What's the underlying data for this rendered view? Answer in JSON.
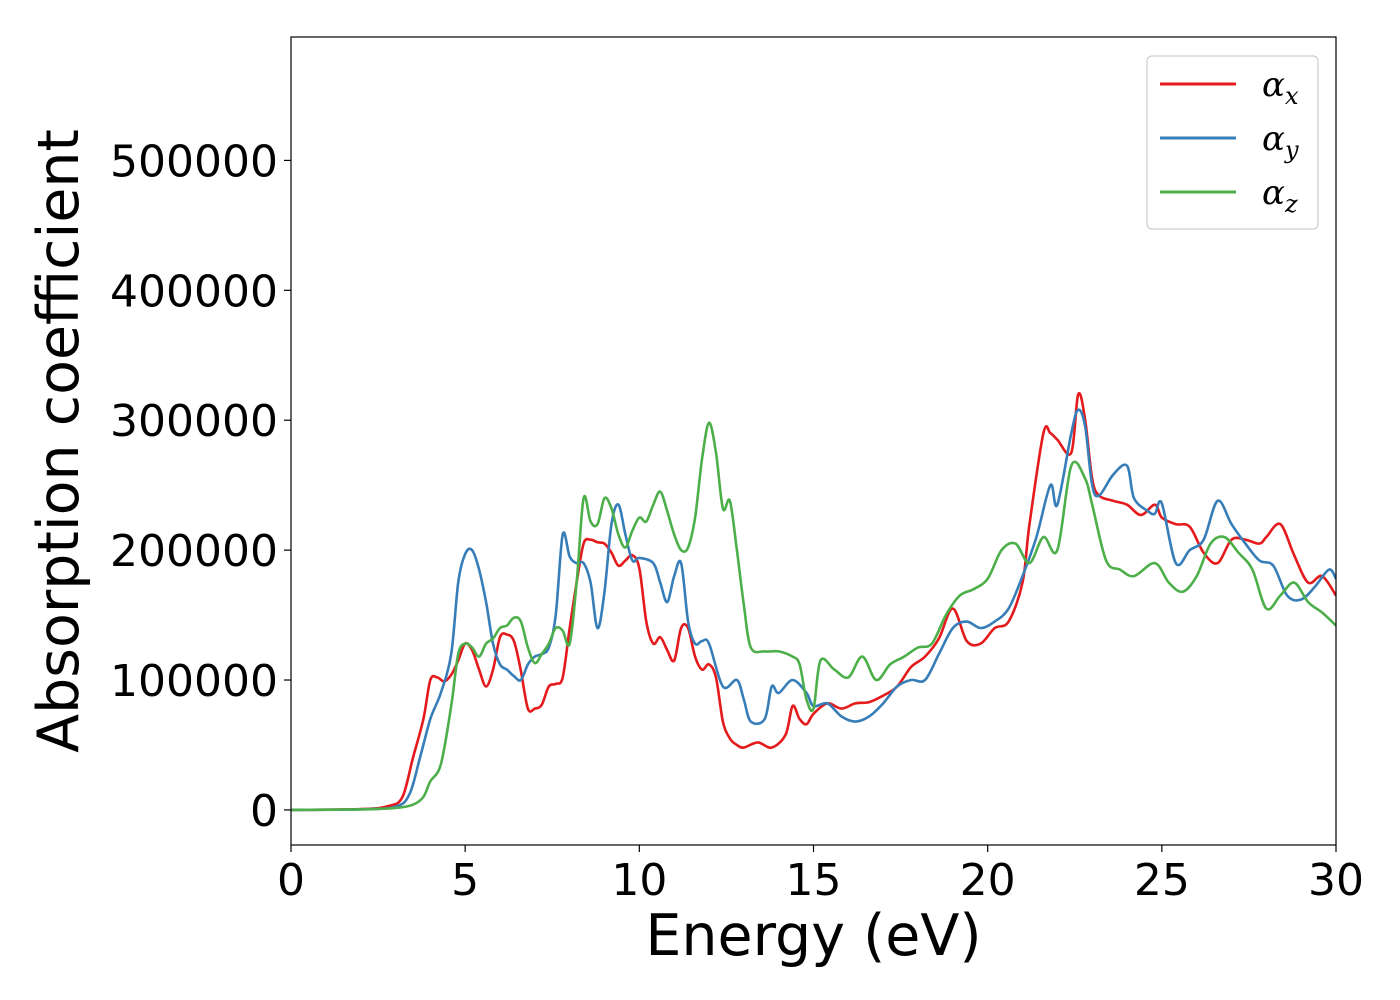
{
  "chart_data": {
    "type": "line",
    "title": "",
    "xlabel": "Energy (eV)",
    "ylabel": "Absorption coefficient",
    "xlim": [
      0,
      30
    ],
    "ylim": [
      -27000,
      595000
    ],
    "xticks": [
      0,
      5,
      10,
      15,
      20,
      25,
      30
    ],
    "yticks": [
      0,
      100000,
      200000,
      300000,
      400000,
      500000
    ],
    "xtick_labels": [
      "0",
      "5",
      "10",
      "15",
      "20",
      "25",
      "30"
    ],
    "ytick_labels": [
      "0",
      "100000",
      "200000",
      "300000",
      "400000",
      "500000"
    ],
    "grid": false,
    "legend_position": "top-right",
    "series": [
      {
        "name": "α_x",
        "color": "#e41a1c",
        "points": [
          [
            0,
            0
          ],
          [
            2,
            600
          ],
          [
            2.8,
            3000
          ],
          [
            3.2,
            10000
          ],
          [
            3.5,
            40000
          ],
          [
            3.8,
            70000
          ],
          [
            4.0,
            100000
          ],
          [
            4.2,
            102000
          ],
          [
            4.4,
            99000
          ],
          [
            4.6,
            104000
          ],
          [
            4.8,
            115000
          ],
          [
            5.0,
            128000
          ],
          [
            5.2,
            123000
          ],
          [
            5.4,
            108000
          ],
          [
            5.6,
            95000
          ],
          [
            5.8,
            108000
          ],
          [
            6.0,
            133000
          ],
          [
            6.2,
            135000
          ],
          [
            6.4,
            130000
          ],
          [
            6.6,
            107000
          ],
          [
            6.8,
            78000
          ],
          [
            7.0,
            78000
          ],
          [
            7.2,
            81000
          ],
          [
            7.4,
            95000
          ],
          [
            7.6,
            97000
          ],
          [
            7.8,
            102000
          ],
          [
            8.0,
            140000
          ],
          [
            8.2,
            175000
          ],
          [
            8.4,
            205000
          ],
          [
            8.6,
            208000
          ],
          [
            8.8,
            206000
          ],
          [
            9.0,
            205000
          ],
          [
            9.2,
            198000
          ],
          [
            9.4,
            188000
          ],
          [
            9.6,
            192000
          ],
          [
            9.8,
            196000
          ],
          [
            10.0,
            186000
          ],
          [
            10.2,
            145000
          ],
          [
            10.4,
            128000
          ],
          [
            10.6,
            133000
          ],
          [
            10.8,
            123000
          ],
          [
            11.0,
            115000
          ],
          [
            11.2,
            140000
          ],
          [
            11.4,
            140000
          ],
          [
            11.6,
            118000
          ],
          [
            11.8,
            108000
          ],
          [
            12.0,
            112000
          ],
          [
            12.2,
            102000
          ],
          [
            12.4,
            68000
          ],
          [
            12.6,
            55000
          ],
          [
            12.8,
            50000
          ],
          [
            13.0,
            48000
          ],
          [
            13.4,
            52000
          ],
          [
            13.8,
            48000
          ],
          [
            14.2,
            58000
          ],
          [
            14.4,
            80000
          ],
          [
            14.6,
            70000
          ],
          [
            14.8,
            66000
          ],
          [
            15.0,
            74000
          ],
          [
            15.4,
            82000
          ],
          [
            15.8,
            78000
          ],
          [
            16.2,
            82000
          ],
          [
            16.6,
            83000
          ],
          [
            17.0,
            88000
          ],
          [
            17.4,
            95000
          ],
          [
            17.8,
            110000
          ],
          [
            18.2,
            118000
          ],
          [
            18.6,
            132000
          ],
          [
            19.0,
            155000
          ],
          [
            19.4,
            130000
          ],
          [
            19.8,
            128000
          ],
          [
            20.2,
            140000
          ],
          [
            20.6,
            145000
          ],
          [
            21.0,
            175000
          ],
          [
            21.2,
            220000
          ],
          [
            21.6,
            290000
          ],
          [
            21.8,
            290000
          ],
          [
            22.0,
            285000
          ],
          [
            22.4,
            275000
          ],
          [
            22.6,
            320000
          ],
          [
            22.8,
            300000
          ],
          [
            23.0,
            255000
          ],
          [
            23.2,
            242000
          ],
          [
            23.6,
            238000
          ],
          [
            24.0,
            235000
          ],
          [
            24.4,
            227000
          ],
          [
            24.8,
            235000
          ],
          [
            25.0,
            225000
          ],
          [
            25.4,
            220000
          ],
          [
            25.8,
            218000
          ],
          [
            26.2,
            198000
          ],
          [
            26.6,
            190000
          ],
          [
            27.0,
            208000
          ],
          [
            27.4,
            208000
          ],
          [
            27.8,
            205000
          ],
          [
            28.0,
            210000
          ],
          [
            28.4,
            220000
          ],
          [
            28.8,
            196000
          ],
          [
            29.2,
            175000
          ],
          [
            29.6,
            180000
          ],
          [
            30,
            165000
          ]
        ]
      },
      {
        "name": "α_y",
        "color": "#377eb8",
        "points": [
          [
            0,
            0
          ],
          [
            2,
            500
          ],
          [
            3.0,
            2500
          ],
          [
            3.4,
            12000
          ],
          [
            3.7,
            40000
          ],
          [
            4.0,
            70000
          ],
          [
            4.3,
            90000
          ],
          [
            4.6,
            120000
          ],
          [
            4.8,
            175000
          ],
          [
            5.0,
            197000
          ],
          [
            5.2,
            200000
          ],
          [
            5.4,
            185000
          ],
          [
            5.6,
            160000
          ],
          [
            5.8,
            128000
          ],
          [
            6.0,
            112000
          ],
          [
            6.2,
            108000
          ],
          [
            6.4,
            103000
          ],
          [
            6.6,
            100000
          ],
          [
            6.8,
            112000
          ],
          [
            7.0,
            118000
          ],
          [
            7.2,
            120000
          ],
          [
            7.4,
            125000
          ],
          [
            7.6,
            150000
          ],
          [
            7.8,
            212000
          ],
          [
            8.0,
            195000
          ],
          [
            8.2,
            190000
          ],
          [
            8.4,
            190000
          ],
          [
            8.6,
            175000
          ],
          [
            8.8,
            140000
          ],
          [
            9.0,
            168000
          ],
          [
            9.2,
            220000
          ],
          [
            9.4,
            235000
          ],
          [
            9.6,
            212000
          ],
          [
            9.8,
            192000
          ],
          [
            10.0,
            194000
          ],
          [
            10.4,
            190000
          ],
          [
            10.6,
            175000
          ],
          [
            10.8,
            160000
          ],
          [
            11.0,
            180000
          ],
          [
            11.2,
            190000
          ],
          [
            11.4,
            145000
          ],
          [
            11.6,
            128000
          ],
          [
            11.8,
            130000
          ],
          [
            12.0,
            128000
          ],
          [
            12.4,
            95000
          ],
          [
            12.8,
            100000
          ],
          [
            13.0,
            85000
          ],
          [
            13.2,
            68000
          ],
          [
            13.6,
            70000
          ],
          [
            13.8,
            95000
          ],
          [
            14.0,
            90000
          ],
          [
            14.4,
            100000
          ],
          [
            14.8,
            90000
          ],
          [
            15.0,
            80000
          ],
          [
            15.4,
            82000
          ],
          [
            15.8,
            72000
          ],
          [
            16.2,
            68000
          ],
          [
            16.6,
            72000
          ],
          [
            17.0,
            82000
          ],
          [
            17.4,
            95000
          ],
          [
            17.8,
            100000
          ],
          [
            18.2,
            100000
          ],
          [
            18.6,
            120000
          ],
          [
            19.0,
            140000
          ],
          [
            19.4,
            145000
          ],
          [
            19.8,
            140000
          ],
          [
            20.2,
            145000
          ],
          [
            20.6,
            155000
          ],
          [
            21.0,
            180000
          ],
          [
            21.4,
            210000
          ],
          [
            21.8,
            250000
          ],
          [
            22.0,
            235000
          ],
          [
            22.4,
            290000
          ],
          [
            22.6,
            308000
          ],
          [
            22.8,
            295000
          ],
          [
            23.0,
            250000
          ],
          [
            23.2,
            242000
          ],
          [
            23.6,
            258000
          ],
          [
            24.0,
            265000
          ],
          [
            24.2,
            240000
          ],
          [
            24.6,
            230000
          ],
          [
            24.8,
            228000
          ],
          [
            25.0,
            236000
          ],
          [
            25.4,
            190000
          ],
          [
            25.8,
            200000
          ],
          [
            26.2,
            208000
          ],
          [
            26.6,
            238000
          ],
          [
            27.0,
            220000
          ],
          [
            27.4,
            205000
          ],
          [
            27.8,
            192000
          ],
          [
            28.2,
            188000
          ],
          [
            28.6,
            165000
          ],
          [
            29.0,
            162000
          ],
          [
            29.4,
            172000
          ],
          [
            29.8,
            185000
          ],
          [
            30,
            178000
          ]
        ]
      },
      {
        "name": "α_z",
        "color": "#4daf4a",
        "points": [
          [
            0,
            0
          ],
          [
            2,
            400
          ],
          [
            3.0,
            1500
          ],
          [
            3.5,
            4000
          ],
          [
            3.8,
            10000
          ],
          [
            4.0,
            22000
          ],
          [
            4.3,
            35000
          ],
          [
            4.6,
            80000
          ],
          [
            4.8,
            120000
          ],
          [
            5.0,
            128000
          ],
          [
            5.2,
            125000
          ],
          [
            5.4,
            118000
          ],
          [
            5.6,
            128000
          ],
          [
            5.8,
            132000
          ],
          [
            6.0,
            140000
          ],
          [
            6.2,
            142000
          ],
          [
            6.4,
            148000
          ],
          [
            6.6,
            145000
          ],
          [
            6.8,
            125000
          ],
          [
            7.0,
            113000
          ],
          [
            7.2,
            120000
          ],
          [
            7.4,
            128000
          ],
          [
            7.6,
            140000
          ],
          [
            7.8,
            138000
          ],
          [
            8.0,
            128000
          ],
          [
            8.2,
            175000
          ],
          [
            8.4,
            240000
          ],
          [
            8.6,
            222000
          ],
          [
            8.8,
            220000
          ],
          [
            9.0,
            240000
          ],
          [
            9.2,
            232000
          ],
          [
            9.4,
            212000
          ],
          [
            9.6,
            202000
          ],
          [
            9.8,
            215000
          ],
          [
            10.0,
            225000
          ],
          [
            10.2,
            222000
          ],
          [
            10.4,
            235000
          ],
          [
            10.6,
            245000
          ],
          [
            10.8,
            230000
          ],
          [
            11.0,
            212000
          ],
          [
            11.2,
            200000
          ],
          [
            11.4,
            202000
          ],
          [
            11.6,
            225000
          ],
          [
            11.8,
            270000
          ],
          [
            12.0,
            298000
          ],
          [
            12.2,
            275000
          ],
          [
            12.4,
            232000
          ],
          [
            12.6,
            238000
          ],
          [
            12.8,
            200000
          ],
          [
            13.0,
            158000
          ],
          [
            13.2,
            125000
          ],
          [
            13.6,
            122000
          ],
          [
            14.0,
            122000
          ],
          [
            14.4,
            118000
          ],
          [
            14.6,
            112000
          ],
          [
            14.8,
            85000
          ],
          [
            15.0,
            78000
          ],
          [
            15.2,
            115000
          ],
          [
            15.6,
            108000
          ],
          [
            16.0,
            102000
          ],
          [
            16.4,
            118000
          ],
          [
            16.8,
            100000
          ],
          [
            17.2,
            112000
          ],
          [
            17.6,
            118000
          ],
          [
            18.0,
            125000
          ],
          [
            18.4,
            128000
          ],
          [
            18.8,
            150000
          ],
          [
            19.2,
            165000
          ],
          [
            19.6,
            170000
          ],
          [
            20.0,
            178000
          ],
          [
            20.4,
            200000
          ],
          [
            20.8,
            205000
          ],
          [
            21.2,
            190000
          ],
          [
            21.6,
            210000
          ],
          [
            22.0,
            200000
          ],
          [
            22.4,
            265000
          ],
          [
            22.8,
            255000
          ],
          [
            23.0,
            235000
          ],
          [
            23.4,
            192000
          ],
          [
            23.8,
            185000
          ],
          [
            24.2,
            180000
          ],
          [
            24.8,
            190000
          ],
          [
            25.2,
            175000
          ],
          [
            25.6,
            168000
          ],
          [
            26.0,
            180000
          ],
          [
            26.4,
            205000
          ],
          [
            26.8,
            210000
          ],
          [
            27.2,
            198000
          ],
          [
            27.6,
            185000
          ],
          [
            28.0,
            155000
          ],
          [
            28.4,
            165000
          ],
          [
            28.8,
            175000
          ],
          [
            29.2,
            160000
          ],
          [
            29.6,
            152000
          ],
          [
            30,
            142000
          ]
        ]
      }
    ]
  }
}
